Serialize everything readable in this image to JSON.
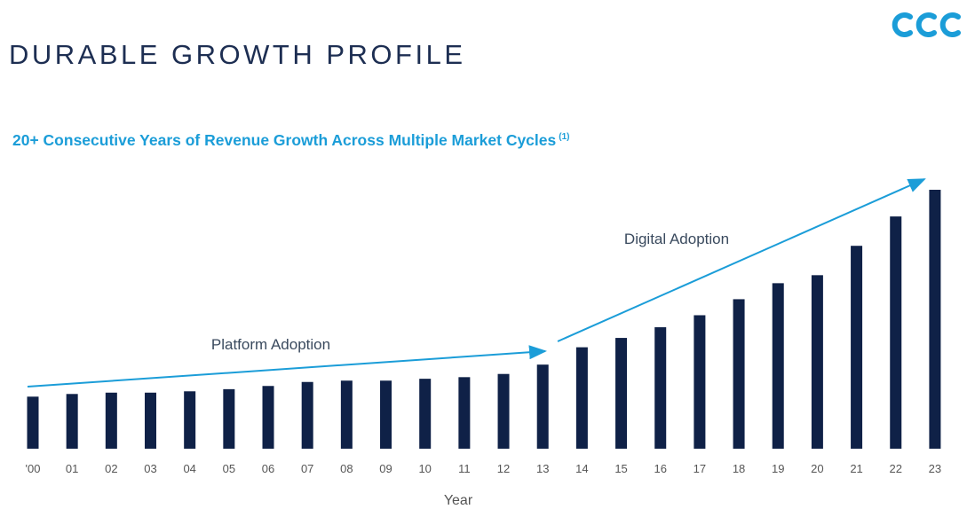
{
  "header": {
    "title": "DURABLE GROWTH PROFILE",
    "logo_text": "CCC",
    "brand_color": "#1b9dd8"
  },
  "subtitle": {
    "text": "20+ Consecutive Years of Revenue Growth Across Multiple Market Cycles",
    "footnote": "(1)"
  },
  "chart_data": {
    "type": "bar",
    "title": "20+ Consecutive Years of Revenue Growth Across Multiple Market Cycles",
    "xlabel": "Year",
    "ylabel": "",
    "categories": [
      "'00",
      "01",
      "02",
      "03",
      "04",
      "05",
      "06",
      "07",
      "08",
      "09",
      "10",
      "11",
      "12",
      "13",
      "14",
      "15",
      "16",
      "17",
      "18",
      "19",
      "20",
      "21",
      "22",
      "23"
    ],
    "values": [
      19.5,
      20.5,
      21,
      21,
      21.5,
      22.3,
      23.5,
      25,
      25.5,
      25.5,
      26.2,
      26.8,
      28,
      31.5,
      38,
      41.5,
      45.5,
      50,
      56,
      62,
      65,
      76,
      87,
      97
    ],
    "ylim": [
      0,
      100
    ],
    "bar_color": "#0f2147",
    "arrow_color": "#1b9dd8",
    "grid": false,
    "annotations": [
      {
        "label": "Platform Adoption",
        "start_index": 0,
        "end_index": 13
      },
      {
        "label": "Digital Adoption",
        "start_index": 14,
        "end_index": 23
      }
    ]
  }
}
